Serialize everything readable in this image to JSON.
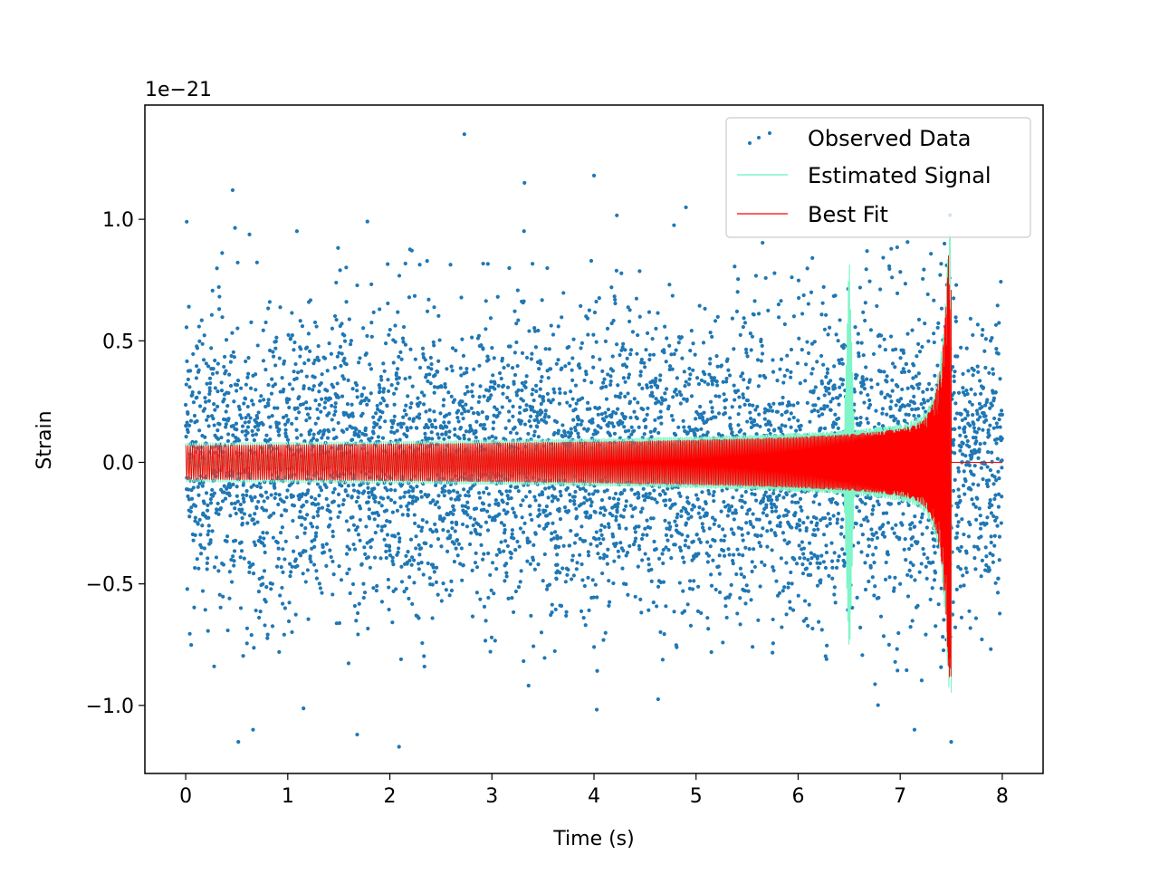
{
  "chart_data": {
    "type": "scatter",
    "title": "",
    "xlabel": "Time (s)",
    "ylabel": "Strain",
    "y_offset_label": "1e−21",
    "y_scale_factor": 1e-21,
    "xlim": [
      -0.4,
      8.4
    ],
    "ylim": [
      -1.28,
      1.47
    ],
    "x_ticks": [
      0,
      1,
      2,
      3,
      4,
      5,
      6,
      7,
      8
    ],
    "x_tick_labels": [
      "0",
      "1",
      "2",
      "3",
      "4",
      "5",
      "6",
      "7",
      "8"
    ],
    "y_ticks": [
      -1.0,
      -0.5,
      0.0,
      0.5,
      1.0
    ],
    "y_tick_labels": [
      "−1.0",
      "−0.5",
      "0.0",
      "0.5",
      "1.0"
    ],
    "grid": false,
    "legend_position": "top-right",
    "series": [
      {
        "name": "Observed Data",
        "kind": "scatter",
        "color": "#1f77b4",
        "description": "dense noisy samples from t=0 to t=8 s, roughly normal with spread ~0.3 (x1e-21)",
        "x_range": [
          0,
          8
        ],
        "noise_std": 0.3,
        "notable_points": [
          {
            "x": 2.73,
            "y": 1.35
          },
          {
            "x": 0.46,
            "y": 1.12
          },
          {
            "x": 4.0,
            "y": 1.18
          },
          {
            "x": 2.09,
            "y": -1.17
          },
          {
            "x": 1.68,
            "y": -1.12
          },
          {
            "x": 0.66,
            "y": -1.1
          },
          {
            "x": 0.01,
            "y": 0.99
          },
          {
            "x": 7.14,
            "y": -1.1
          }
        ]
      },
      {
        "name": "Estimated Signal",
        "kind": "line",
        "color": "#7ff5c8",
        "description": "chirp waveform with amplitude ~0.08 at t=0, growing and stopping near t=7.5 s; spikes near t=6.5 s",
        "amplitude_start": 0.08,
        "amplitude_peak": 0.95,
        "merger_time": 7.5,
        "spike_time": 6.5
      },
      {
        "name": "Best Fit",
        "kind": "line",
        "color": "#ff0000",
        "description": "chirp fit, amplitude ~0.07 at t=0 growing to ~0.9 at t=7.5 s, flat zero afterwards",
        "amplitude_start": 0.07,
        "amplitude_peak": 0.9,
        "merger_time": 7.5
      }
    ]
  }
}
